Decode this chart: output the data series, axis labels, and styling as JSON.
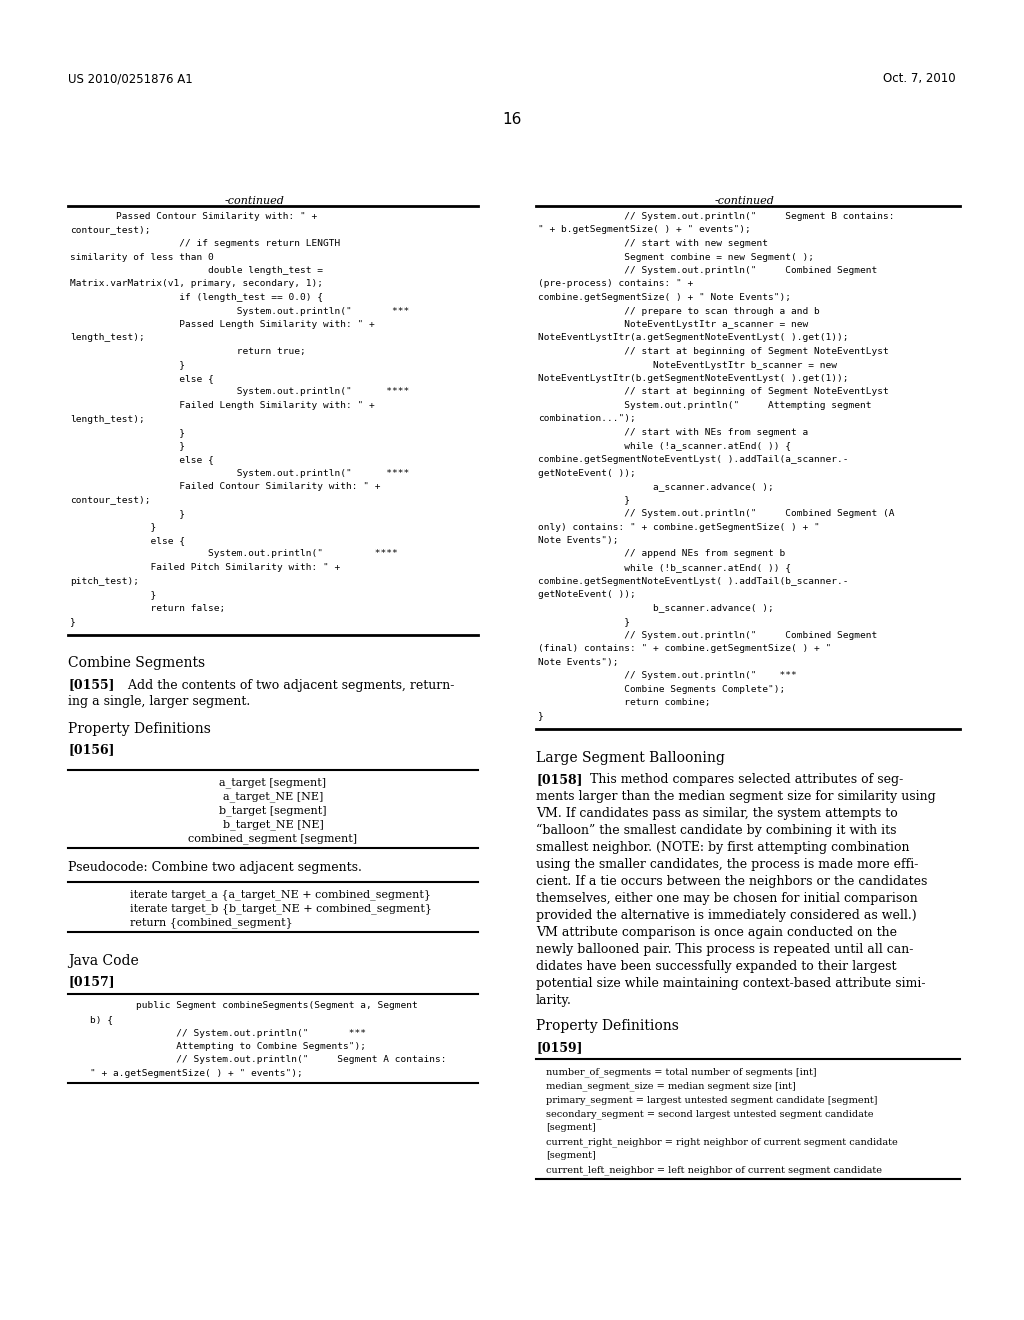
{
  "bg_color": "#ffffff",
  "header_left": "US 2010/0251876 A1",
  "header_right": "Oct. 7, 2010",
  "page_number": "16",
  "continued_label": "-continued",
  "left_code_top": [
    "        Passed Contour Similarity with: \" +",
    "contour_test);",
    "                   // if segments return LENGTH",
    "similarity of less than 0",
    "                        double length_test =",
    "Matrix.varMatrix(v1, primary, secondary, 1);",
    "                   if (length_test == 0.0) {",
    "                             System.out.println(\"       ***",
    "                   Passed Length Similarity with: \" +",
    "length_test);",
    "                             return true;",
    "                   }",
    "                   else {",
    "                             System.out.println(\"      ****",
    "                   Failed Length Similarity with: \" +",
    "length_test);",
    "                   }",
    "                   }",
    "                   else {",
    "                             System.out.println(\"      ****",
    "                   Failed Contour Similarity with: \" +",
    "contour_test);",
    "                   }",
    "              }",
    "              else {",
    "                        System.out.println(\"         ****",
    "              Failed Pitch Similarity with: \" +",
    "pitch_test);",
    "              }",
    "              return false;",
    "}"
  ],
  "right_code_top": [
    "               // System.out.println(\"     Segment B contains:",
    "\" + b.getSegmentSize( ) + \" events\");",
    "               // start with new segment",
    "               Segment combine = new Segment( );",
    "               // System.out.println(\"     Combined Segment",
    "(pre-process) contains: \" +",
    "combine.getSegmentSize( ) + \" Note Events\");",
    "               // prepare to scan through a and b",
    "               NoteEventLystItr a_scanner = new",
    "NoteEventLystItr(a.getSegmentNoteEventLyst( ).get(1));",
    "               // start at beginning of Segment NoteEventLyst",
    "                    NoteEventLystItr b_scanner = new",
    "NoteEventLystItr(b.getSegmentNoteEventLyst( ).get(1));",
    "               // start at beginning of Segment NoteEventLyst",
    "               System.out.println(\"     Attempting segment",
    "combination...\");",
    "               // start with NEs from segment a",
    "               while (!a_scanner.atEnd( )) {",
    "combine.getSegmentNoteEventLyst( ).addTail(a_scanner.-",
    "getNoteEvent( ));",
    "                    a_scanner.advance( );",
    "               }",
    "               // System.out.println(\"     Combined Segment (A",
    "only) contains: \" + combine.getSegmentSize( ) + \"",
    "Note Events\");",
    "               // append NEs from segment b",
    "               while (!b_scanner.atEnd( )) {",
    "combine.getSegmentNoteEventLyst( ).addTail(b_scanner.-",
    "getNoteEvent( ));",
    "                    b_scanner.advance( );",
    "               }",
    "               // System.out.println(\"     Combined Segment",
    "(final) contains: \" + combine.getSegmentSize( ) + \"",
    "Note Events\");",
    "               // System.out.println(\"    ***",
    "               Combine Segments Complete\");",
    "               return combine;",
    "}"
  ],
  "combine_segments_title": "Combine Segments",
  "combine_segments_para_ref": "[0155]",
  "combine_segments_para_text": "   Add the contents of two adjacent segments, return-\ning a single, larger segment.",
  "property_defs_title_left": "Property Definitions",
  "property_defs_ref_left": "[0156]",
  "pseudocode_box_lines": [
    "a_target [segment]",
    "a_target_NE [NE]",
    "b_target [segment]",
    "b_target_NE [NE]",
    "combined_segment [segment]"
  ],
  "pseudocode_label": "Pseudocode: Combine two adjacent segments.",
  "pseudocode_box2_lines": [
    "iterate target_a {a_target_NE + combined_segment}",
    "iterate target_b {b_target_NE + combined_segment}",
    "return {combined_segment}"
  ],
  "java_code_title": "Java Code",
  "java_code_ref": "[0157]",
  "java_code_lines": [
    "        public Segment combineSegments(Segment a, Segment",
    "b) {",
    "               // System.out.println(\"       ***",
    "               Attempting to Combine Segments\");",
    "               // System.out.println(\"     Segment A contains:",
    "\" + a.getSegmentSize( ) + \" events\");"
  ],
  "large_segment_title": "Large Segment Ballooning",
  "large_segment_ref": "[0158]",
  "large_segment_para": "   This method compares selected attributes of seg-\nments larger than the median segment size for similarity using\nVM. If candidates pass as similar, the system attempts to\n“balloon” the smallest candidate by combining it with its\nsmallest neighbor. (NOTE: by first attempting combination\nusing the smaller candidates, the process is made more effi-\ncient. If a tie occurs between the neighbors or the candidates\nthemselves, either one may be chosen for initial comparison\nprovided the alternative is immediately considered as well.)\nVM attribute comparison is once again conducted on the\nnewly ballooned pair. This process is repeated until all can-\ndidates have been successfully expanded to their largest\npotential size while maintaining context-based attribute simi-\nlarity.",
  "property_defs_title_right": "Property Definitions",
  "property_defs_ref_right": "[0159]",
  "right_prop_box_lines": [
    "number_of_segments = total number of segments [int]",
    "median_segment_size = median segment size [int]",
    "primary_segment = largest untested segment candidate [segment]",
    "secondary_segment = second largest untested segment candidate",
    "[segment]",
    "current_right_neighbor = right neighbor of current segment candidate",
    "[segment]",
    "current_left_neighbor = left neighbor of current segment candidate"
  ]
}
